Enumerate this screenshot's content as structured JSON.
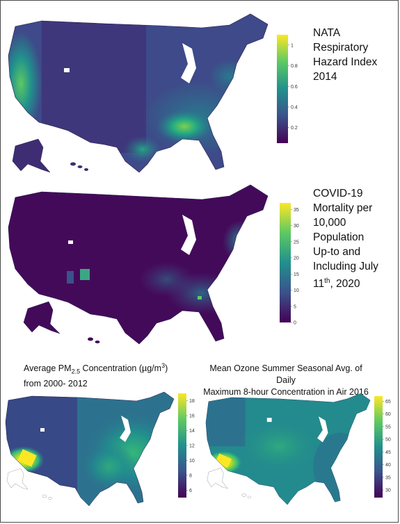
{
  "panels": {
    "nata": {
      "title_lines": [
        "NATA",
        "Respiratory",
        "Hazard Index",
        "2014"
      ],
      "legend": {
        "min": 0.05,
        "max": 1.1,
        "ticks": [
          "1",
          "0.8",
          "0.6",
          "0.4",
          "0.2"
        ],
        "tick_values": [
          1,
          0.8,
          0.6,
          0.4,
          0.2
        ]
      }
    },
    "covid": {
      "title_lines": [
        "COVID-19",
        "Mortality per",
        "10,000 Population",
        "Up-to and",
        "Including July"
      ],
      "title_last_line": {
        "pre": "11",
        "sup": "th",
        "post": ", 2020"
      },
      "legend": {
        "min": 0,
        "max": 37,
        "ticks": [
          "35",
          "30",
          "25",
          "20",
          "15",
          "10",
          "5",
          "0"
        ],
        "tick_values": [
          35,
          30,
          25,
          20,
          15,
          10,
          5,
          0
        ]
      }
    },
    "pm25": {
      "title_line1": {
        "pre": "Average PM",
        "sub": "2.5",
        "mid": " Concentration (µg/m",
        "sup": "3",
        "post": ")"
      },
      "title_line2": "from 2000- 2012",
      "legend": {
        "min": 5,
        "max": 19,
        "ticks": [
          "18",
          "16",
          "14",
          "12",
          "10",
          "8",
          "6"
        ],
        "tick_values": [
          18,
          16,
          14,
          12,
          10,
          8,
          6
        ]
      }
    },
    "ozone": {
      "title_line1": "Mean Ozone Summer Seasonal Avg. of Daily",
      "title_line2": "Maximum 8-hour Concentration in Air 2016",
      "legend": {
        "min": 27,
        "max": 67,
        "ticks": [
          "65",
          "60",
          "55",
          "50",
          "45",
          "40",
          "35",
          "30"
        ],
        "tick_values": [
          65,
          60,
          55,
          50,
          45,
          40,
          35,
          30
        ]
      }
    }
  },
  "colors": {
    "viridis": [
      "#440154",
      "#3b528b",
      "#21908d",
      "#5dc963",
      "#fde725"
    ],
    "frame": "#4a4a4a"
  }
}
